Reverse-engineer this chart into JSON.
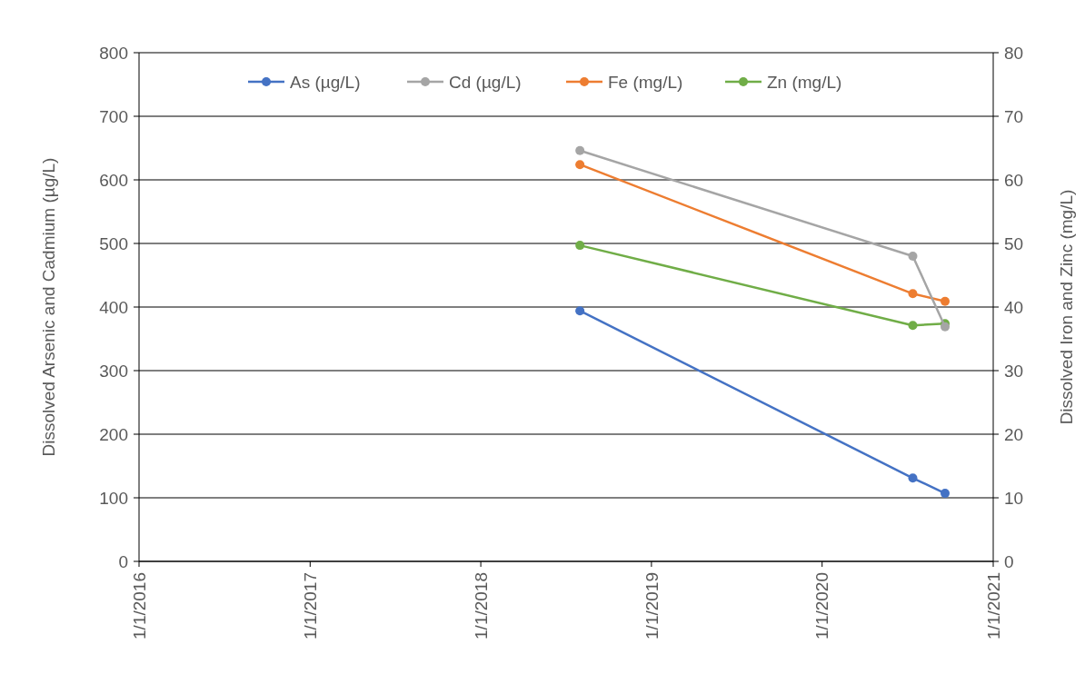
{
  "chart_data": {
    "type": "line",
    "ylabel": "Dissolved Arsenic and Cadmium (µg/L)",
    "y2label": "Dissolved Iron and Zinc (mg/L)",
    "x": [
      "2018-08-01",
      "2020-07-13",
      "2020-09-20"
    ],
    "xlim": [
      "2016-01-01",
      "2021-01-01"
    ],
    "xticks": [
      {
        "value": "2016-01-01",
        "label": "1/1/2016"
      },
      {
        "value": "2017-01-01",
        "label": "1/1/2017"
      },
      {
        "value": "2018-01-01",
        "label": "1/1/2018"
      },
      {
        "value": "2019-01-01",
        "label": "1/1/2019"
      },
      {
        "value": "2020-01-01",
        "label": "1/1/2020"
      },
      {
        "value": "2021-01-01",
        "label": "1/1/2021"
      }
    ],
    "ylim": [
      0,
      800
    ],
    "yticks": [
      0,
      100,
      200,
      300,
      400,
      500,
      600,
      700,
      800
    ],
    "y2lim": [
      0,
      80
    ],
    "y2ticks": [
      0,
      10,
      20,
      30,
      40,
      50,
      60,
      70,
      80
    ],
    "series": [
      {
        "name": "As (µg/L)",
        "color": "#4472c4",
        "values": [
          394,
          131,
          107
        ]
      },
      {
        "name": "Cd (µg/L)",
        "color": "#a5a5a5",
        "values": [
          646,
          480,
          369
        ]
      },
      {
        "name": "Fe (mg/L)",
        "color": "#ed7d31",
        "values": [
          62.4,
          42.1,
          40.9
        ],
        "axis": "y2"
      },
      {
        "name": "Zn (mg/L)",
        "color": "#70ad47",
        "values": [
          49.7,
          37.1,
          37.4
        ],
        "axis": "y2"
      }
    ],
    "grid": "y",
    "legend": "top",
    "marker": "circle",
    "line_style": "solid"
  }
}
